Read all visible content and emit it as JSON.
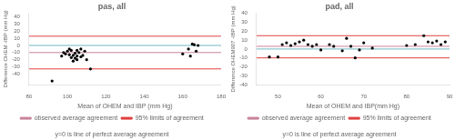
{
  "chart_data": [
    {
      "type": "scatter",
      "title": "pas, all",
      "xlabel": "Mean of OHEM and IBP (mm Hg)",
      "ylabel": "Difference OHEM -IBP (mm Hg)",
      "xlim": [
        80,
        180
      ],
      "ylim": [
        -55,
        45
      ],
      "xticks": [
        80,
        100,
        120,
        140,
        160,
        180
      ],
      "yticks": [
        -40,
        -30,
        -20,
        -10,
        0,
        10,
        20,
        30,
        40
      ],
      "grid": false,
      "legend": "bottom",
      "series": [
        {
          "color": "black",
          "x": [
            92,
            97,
            98,
            99,
            100,
            101,
            101,
            102,
            102,
            103,
            103,
            104,
            104,
            105,
            105,
            105,
            106,
            107,
            107,
            108,
            109,
            110,
            112,
            160,
            163,
            164,
            165,
            166,
            167,
            168
          ],
          "values": [
            -50,
            -15,
            -10,
            -12,
            -8,
            -5,
            -13,
            -7,
            -17,
            -14,
            -22,
            -11,
            -18,
            -7,
            -15,
            -20,
            -10,
            -5,
            -16,
            -14,
            -8,
            -20,
            -33,
            -12,
            -5,
            -15,
            2,
            1,
            -8,
            0
          ]
        }
      ],
      "hlines": [
        {
          "value": -10,
          "name": "observed average agreement",
          "color": "#c8849a"
        },
        {
          "value": 13,
          "name": "95% limits of agreement",
          "color": "#e04040"
        },
        {
          "value": -33,
          "color": "#e04040"
        },
        {
          "value": 0,
          "color": "#70b8c0"
        }
      ],
      "annotation": "y=0 is line of perfect average agreement"
    },
    {
      "type": "scatter",
      "title": "pad, all",
      "xlabel": "Mean of OHEM and IBP(mm Hg)",
      "ylabel": "Difference OHEM907 -IBP (mm Hg)",
      "xlim": [
        45,
        90
      ],
      "ylim": [
        -40,
        40
      ],
      "xticks": [
        50,
        60,
        70,
        80,
        90
      ],
      "yticks": [
        -40,
        -30,
        -20,
        -10,
        0,
        10,
        20,
        30,
        40
      ],
      "grid": false,
      "legend": "bottom",
      "series": [
        {
          "color": "black",
          "x": [
            48,
            50,
            51,
            52,
            53,
            54,
            55,
            56,
            57,
            58,
            59,
            60,
            62,
            63,
            65,
            66,
            67,
            68,
            69,
            70,
            72,
            80,
            82,
            84,
            85,
            86,
            87,
            88,
            89
          ],
          "values": [
            -9,
            -9,
            5,
            7,
            4,
            6,
            8,
            10,
            5,
            3,
            5,
            -1,
            5,
            3,
            -2,
            12,
            3,
            -10,
            -1,
            7,
            1,
            4,
            5,
            15,
            8,
            7,
            9,
            5,
            8
          ]
        }
      ],
      "hlines": [
        {
          "value": 3,
          "name": "observed average agreement",
          "color": "#c8849a"
        },
        {
          "value": 15,
          "name": "95% limits of agreement",
          "color": "#e04040"
        },
        {
          "value": -10,
          "color": "#e04040"
        },
        {
          "value": 0,
          "color": "#70b8c0"
        }
      ],
      "annotation": "y=0 is line of perfect average agreement"
    }
  ]
}
